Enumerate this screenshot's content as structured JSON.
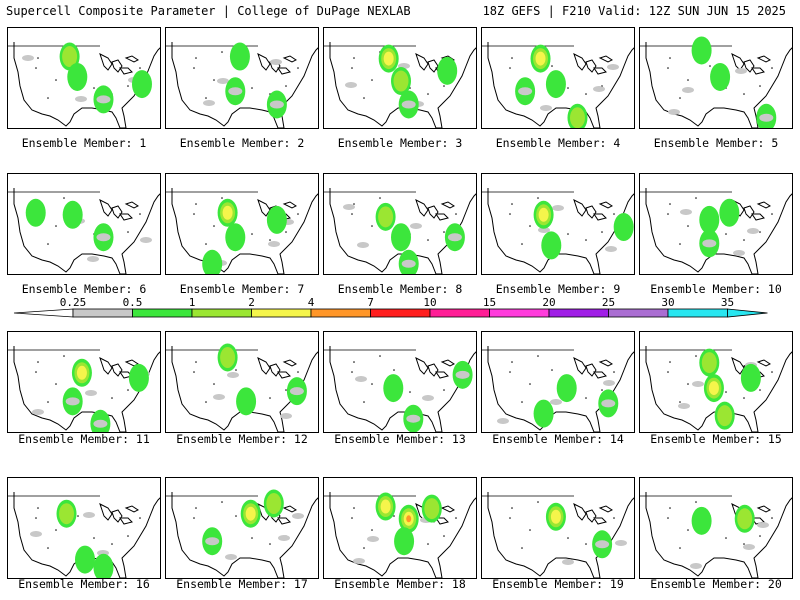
{
  "header": {
    "left_title": "Supercell Composite Parameter | College of DuPage NEXLAB",
    "right_title": "18Z GEFS | F210 Valid: 12Z SUN JUN 15 2025"
  },
  "colorbar": {
    "ticks": [
      "0.25",
      "0.5",
      "1",
      "2",
      "4",
      "7",
      "10",
      "15",
      "20",
      "25",
      "30",
      "35"
    ],
    "colors": [
      "#c8c8c8",
      "#3ce63c",
      "#9be632",
      "#f5f54b",
      "#ff9628",
      "#ff1e1e",
      "#ff1e96",
      "#ff3cdc",
      "#a01ee6",
      "#aa6ed2",
      "#28e6f0"
    ]
  },
  "members": [
    {
      "label": "Ensemble Member: 1",
      "blobs": [
        [
          0.4,
          0.28,
          2
        ],
        [
          0.45,
          0.48,
          1
        ],
        [
          0.62,
          0.7,
          0
        ],
        [
          0.87,
          0.55,
          1
        ]
      ]
    },
    {
      "label": "Ensemble Member: 2",
      "blobs": [
        [
          0.48,
          0.28,
          1
        ],
        [
          0.45,
          0.62,
          0
        ],
        [
          0.72,
          0.75,
          0
        ]
      ]
    },
    {
      "label": "Ensemble Member: 3",
      "blobs": [
        [
          0.42,
          0.3,
          3
        ],
        [
          0.5,
          0.52,
          2
        ],
        [
          0.8,
          0.42,
          1
        ],
        [
          0.55,
          0.75,
          0
        ]
      ]
    },
    {
      "label": "Ensemble Member: 4",
      "blobs": [
        [
          0.38,
          0.3,
          3
        ],
        [
          0.48,
          0.55,
          1
        ],
        [
          0.62,
          0.88,
          2
        ],
        [
          0.28,
          0.62,
          0
        ]
      ]
    },
    {
      "label": "Ensemble Member: 5",
      "blobs": [
        [
          0.4,
          0.22,
          1
        ],
        [
          0.52,
          0.48,
          1
        ],
        [
          0.82,
          0.88,
          0
        ]
      ]
    },
    {
      "label": "Ensemble Member: 6",
      "blobs": [
        [
          0.42,
          0.4,
          1
        ],
        [
          0.18,
          0.38,
          1
        ],
        [
          0.62,
          0.62,
          0
        ]
      ]
    },
    {
      "label": "Ensemble Member: 7",
      "blobs": [
        [
          0.4,
          0.38,
          3
        ],
        [
          0.45,
          0.62,
          1
        ],
        [
          0.72,
          0.45,
          1
        ],
        [
          0.3,
          0.88,
          1
        ]
      ]
    },
    {
      "label": "Ensemble Member: 8",
      "blobs": [
        [
          0.4,
          0.42,
          2
        ],
        [
          0.5,
          0.62,
          1
        ],
        [
          0.85,
          0.62,
          0
        ],
        [
          0.55,
          0.88,
          0
        ]
      ]
    },
    {
      "label": "Ensemble Member: 9",
      "blobs": [
        [
          0.4,
          0.4,
          3
        ],
        [
          0.45,
          0.7,
          1
        ],
        [
          0.92,
          0.52,
          1
        ]
      ]
    },
    {
      "label": "Ensemble Member: 10",
      "blobs": [
        [
          0.45,
          0.45,
          1
        ],
        [
          0.45,
          0.68,
          0
        ],
        [
          0.58,
          0.38,
          1
        ]
      ]
    },
    {
      "label": "Ensemble Member: 11",
      "blobs": [
        [
          0.48,
          0.4,
          3
        ],
        [
          0.42,
          0.68,
          0
        ],
        [
          0.85,
          0.45,
          1
        ],
        [
          0.6,
          0.9,
          0
        ]
      ]
    },
    {
      "label": "Ensemble Member: 12",
      "blobs": [
        [
          0.4,
          0.25,
          2
        ],
        [
          0.52,
          0.68,
          1
        ],
        [
          0.85,
          0.58,
          0
        ]
      ]
    },
    {
      "label": "Ensemble Member: 13",
      "blobs": [
        [
          0.45,
          0.55,
          1
        ],
        [
          0.9,
          0.42,
          0
        ],
        [
          0.58,
          0.85,
          0
        ]
      ]
    },
    {
      "label": "Ensemble Member: 14",
      "blobs": [
        [
          0.55,
          0.55,
          1
        ],
        [
          0.4,
          0.8,
          1
        ],
        [
          0.82,
          0.7,
          0
        ]
      ]
    },
    {
      "label": "Ensemble Member: 15",
      "blobs": [
        [
          0.45,
          0.3,
          2
        ],
        [
          0.48,
          0.55,
          3
        ],
        [
          0.55,
          0.82,
          2
        ],
        [
          0.72,
          0.45,
          1
        ]
      ]
    },
    {
      "label": "Ensemble Member: 16",
      "blobs": [
        [
          0.38,
          0.35,
          2
        ],
        [
          0.5,
          0.8,
          1
        ],
        [
          0.62,
          0.88,
          1
        ]
      ]
    },
    {
      "label": "Ensemble Member: 17",
      "blobs": [
        [
          0.55,
          0.35,
          3
        ],
        [
          0.7,
          0.25,
          2
        ],
        [
          0.3,
          0.62,
          0
        ]
      ]
    },
    {
      "label": "Ensemble Member: 18",
      "blobs": [
        [
          0.4,
          0.28,
          3
        ],
        [
          0.55,
          0.4,
          4
        ],
        [
          0.7,
          0.3,
          2
        ],
        [
          0.52,
          0.62,
          1
        ]
      ]
    },
    {
      "label": "Ensemble Member: 19",
      "blobs": [
        [
          0.48,
          0.38,
          3
        ],
        [
          0.78,
          0.65,
          0
        ]
      ]
    },
    {
      "label": "Ensemble Member: 20",
      "blobs": [
        [
          0.68,
          0.4,
          2
        ],
        [
          0.4,
          0.42,
          1
        ]
      ]
    }
  ]
}
